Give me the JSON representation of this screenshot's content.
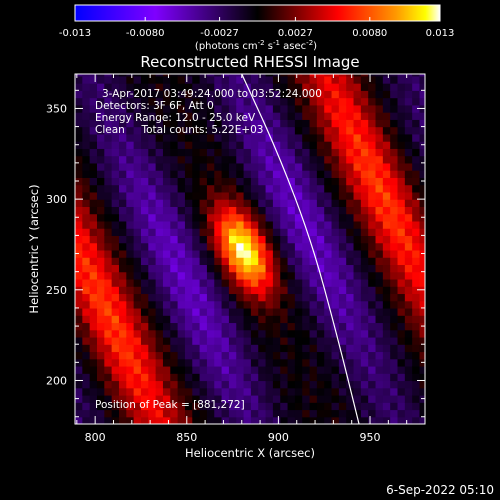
{
  "chart_data": {
    "type": "heatmap",
    "title": "Reconstructed RHESSI Image",
    "xlabel": "Heliocentric X (arcsec)",
    "ylabel": "Heliocentric Y (arcsec)",
    "xlim": [
      789,
      980
    ],
    "ylim": [
      176,
      369
    ],
    "x_ticks": [
      800,
      850,
      900,
      950
    ],
    "y_ticks": [
      200,
      250,
      300,
      350
    ],
    "annotations": [
      "3-Apr-2017 03:49:24.000 to 03:52:24.000",
      "Detectors: 3F 6F, Att 0",
      "Energy Range: 12.0 - 25.0 keV",
      "Clean     Total counts: 5.22E+03",
      "Position of Peak = [881,272]"
    ],
    "colorbar": {
      "range": [
        -0.013,
        0.013
      ],
      "tick_labels": [
        "-0.013",
        "-0.0080",
        "-0.0027",
        "0.0027",
        "0.0080",
        "0.013"
      ],
      "tick_values": [
        -0.013,
        -0.008,
        -0.0027,
        0.0027,
        0.008,
        0.013
      ],
      "label": "(photons cm",
      "label_sup1": "-2",
      "label_mid": " s",
      "label_sup2": "-1",
      "label_mid2": " asec",
      "label_sup3": "-2",
      "label_end": ")"
    },
    "peak": {
      "x": 881,
      "y": 272,
      "value": 0.013
    },
    "structure": {
      "ridge_direction_deg": 115,
      "band_period_arcsec": 86,
      "core_sigma_arcsec": [
        9,
        18
      ]
    },
    "limb_curve": [
      [
        880,
        369
      ],
      [
        900,
        325
      ],
      [
        918,
        277
      ],
      [
        932,
        225
      ],
      [
        944,
        176
      ]
    ]
  },
  "timestamp": "6-Sep-2022 05:10",
  "colors": {
    "background": "#000000",
    "foreground": "#ffffff",
    "colormap": [
      "#0000ff",
      "#7f00ff",
      "#000000",
      "#ff0000",
      "#ffff00",
      "#ffffff"
    ]
  }
}
